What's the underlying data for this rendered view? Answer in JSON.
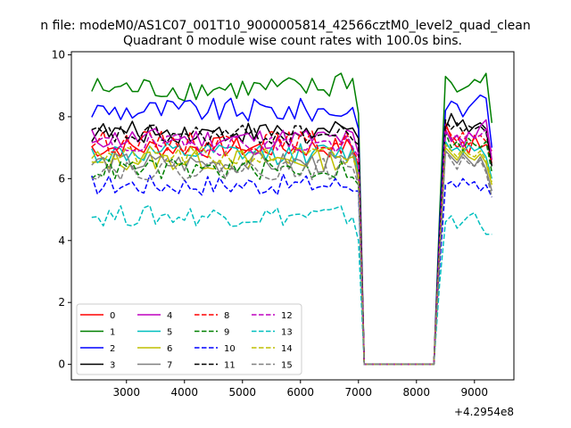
{
  "figure": {
    "suptitle": "n file: modeM0/AS1C07_001T10_9000005814_42566cztM0_level2_quad_clean"
  },
  "chart_data": {
    "type": "line",
    "title": "Quadrant 0 module wise count rates with 100.0s bins.",
    "xlabel": "",
    "ylabel": "",
    "x_offset_label": "+4.2954e8",
    "xlim": [
      2050,
      9680
    ],
    "ylim": [
      -0.5,
      10.1
    ],
    "xticks": [
      3000,
      4000,
      5000,
      6000,
      7000,
      8000,
      9000
    ],
    "yticks": [
      0,
      2,
      4,
      6,
      8,
      10
    ],
    "grid": false,
    "legend_placement": "lower-left",
    "legend_columns": 4,
    "x_start": 2400,
    "x_step": 100,
    "gap_start": 7100,
    "gap_end": 8300,
    "series": [
      {
        "name": "0",
        "color": "#ff0000",
        "style": "solid",
        "pre": 7.0,
        "drop": 6.4,
        "post": [
          7.8,
          7.3,
          7.0,
          7.2,
          6.8,
          7.4,
          7.0,
          7.1,
          6.9
        ]
      },
      {
        "name": "1",
        "color": "#008000",
        "style": "solid",
        "pre": 8.9,
        "drop": 8.1,
        "post": [
          9.3,
          9.1,
          8.8,
          8.9,
          9.0,
          9.2,
          9.1,
          9.4,
          7.8
        ]
      },
      {
        "name": "2",
        "color": "#0000ff",
        "style": "solid",
        "pre": 8.2,
        "drop": 7.6,
        "post": [
          8.2,
          8.5,
          8.4,
          8.0,
          8.3,
          8.5,
          8.7,
          8.6,
          7.0
        ]
      },
      {
        "name": "3",
        "color": "#000000",
        "style": "solid",
        "pre": 7.5,
        "drop": 7.3,
        "post": [
          7.6,
          8.1,
          7.7,
          7.9,
          7.5,
          7.7,
          7.8,
          7.6,
          6.4
        ]
      },
      {
        "name": "4",
        "color": "#bf00bf",
        "style": "solid",
        "pre": 7.3,
        "drop": 6.8,
        "post": [
          7.6,
          7.2,
          7.4,
          7.0,
          7.5,
          7.3,
          7.7,
          7.9,
          6.6
        ]
      },
      {
        "name": "5",
        "color": "#00bfbf",
        "style": "solid",
        "pre": 6.8,
        "drop": 6.2,
        "post": [
          7.2,
          6.9,
          7.0,
          6.8,
          7.1,
          6.9,
          7.0,
          6.7,
          6.0
        ]
      },
      {
        "name": "6",
        "color": "#bfbf00",
        "style": "solid",
        "pre": 6.6,
        "drop": 6.0,
        "post": [
          7.0,
          6.8,
          6.6,
          6.9,
          6.7,
          6.6,
          6.8,
          6.5,
          5.8
        ]
      },
      {
        "name": "7",
        "color": "#808080",
        "style": "solid",
        "pre": 6.5,
        "drop": 5.9,
        "post": [
          6.9,
          6.7,
          6.5,
          6.8,
          6.6,
          6.4,
          6.7,
          6.3,
          5.6
        ]
      },
      {
        "name": "8",
        "color": "#ff0000",
        "style": "dashed",
        "pre": 7.2,
        "drop": 6.6,
        "post": [
          7.7,
          7.4,
          7.2,
          7.5,
          7.1,
          7.3,
          7.4,
          7.2,
          6.5
        ]
      },
      {
        "name": "9",
        "color": "#008000",
        "style": "dashed",
        "pre": 6.3,
        "drop": 5.8,
        "post": [
          7.5,
          7.0,
          7.2,
          6.9,
          7.3,
          7.1,
          7.0,
          7.2,
          6.2
        ]
      },
      {
        "name": "10",
        "color": "#0000ff",
        "style": "dashed",
        "pre": 5.8,
        "drop": 5.6,
        "post": [
          5.8,
          5.9,
          5.7,
          6.0,
          5.8,
          5.9,
          5.6,
          5.8,
          5.4
        ]
      },
      {
        "name": "11",
        "color": "#000000",
        "style": "dashed",
        "pre": 7.4,
        "drop": 7.1,
        "post": [
          7.9,
          7.6,
          7.8,
          7.5,
          7.7,
          7.6,
          7.7,
          7.5,
          6.4
        ]
      },
      {
        "name": "12",
        "color": "#bf00bf",
        "style": "dashed",
        "pre": 7.1,
        "drop": 6.7,
        "post": [
          7.5,
          7.3,
          7.4,
          7.2,
          7.5,
          7.3,
          7.4,
          7.6,
          6.8
        ]
      },
      {
        "name": "13",
        "color": "#00bfbf",
        "style": "dashed",
        "pre": 4.8,
        "drop": 4.0,
        "post": [
          4.6,
          4.8,
          4.4,
          4.6,
          4.8,
          4.9,
          4.5,
          4.2,
          4.2
        ]
      },
      {
        "name": "14",
        "color": "#bfbf00",
        "style": "dashed",
        "pre": 6.7,
        "drop": 6.1,
        "post": [
          7.1,
          6.9,
          6.7,
          7.0,
          6.8,
          6.7,
          6.9,
          6.6,
          5.9
        ]
      },
      {
        "name": "15",
        "color": "#808080",
        "style": "dashed",
        "pre": 6.3,
        "drop": 5.8,
        "post": [
          6.9,
          6.6,
          6.3,
          6.7,
          6.5,
          6.4,
          6.6,
          6.2,
          5.4
        ]
      }
    ]
  }
}
